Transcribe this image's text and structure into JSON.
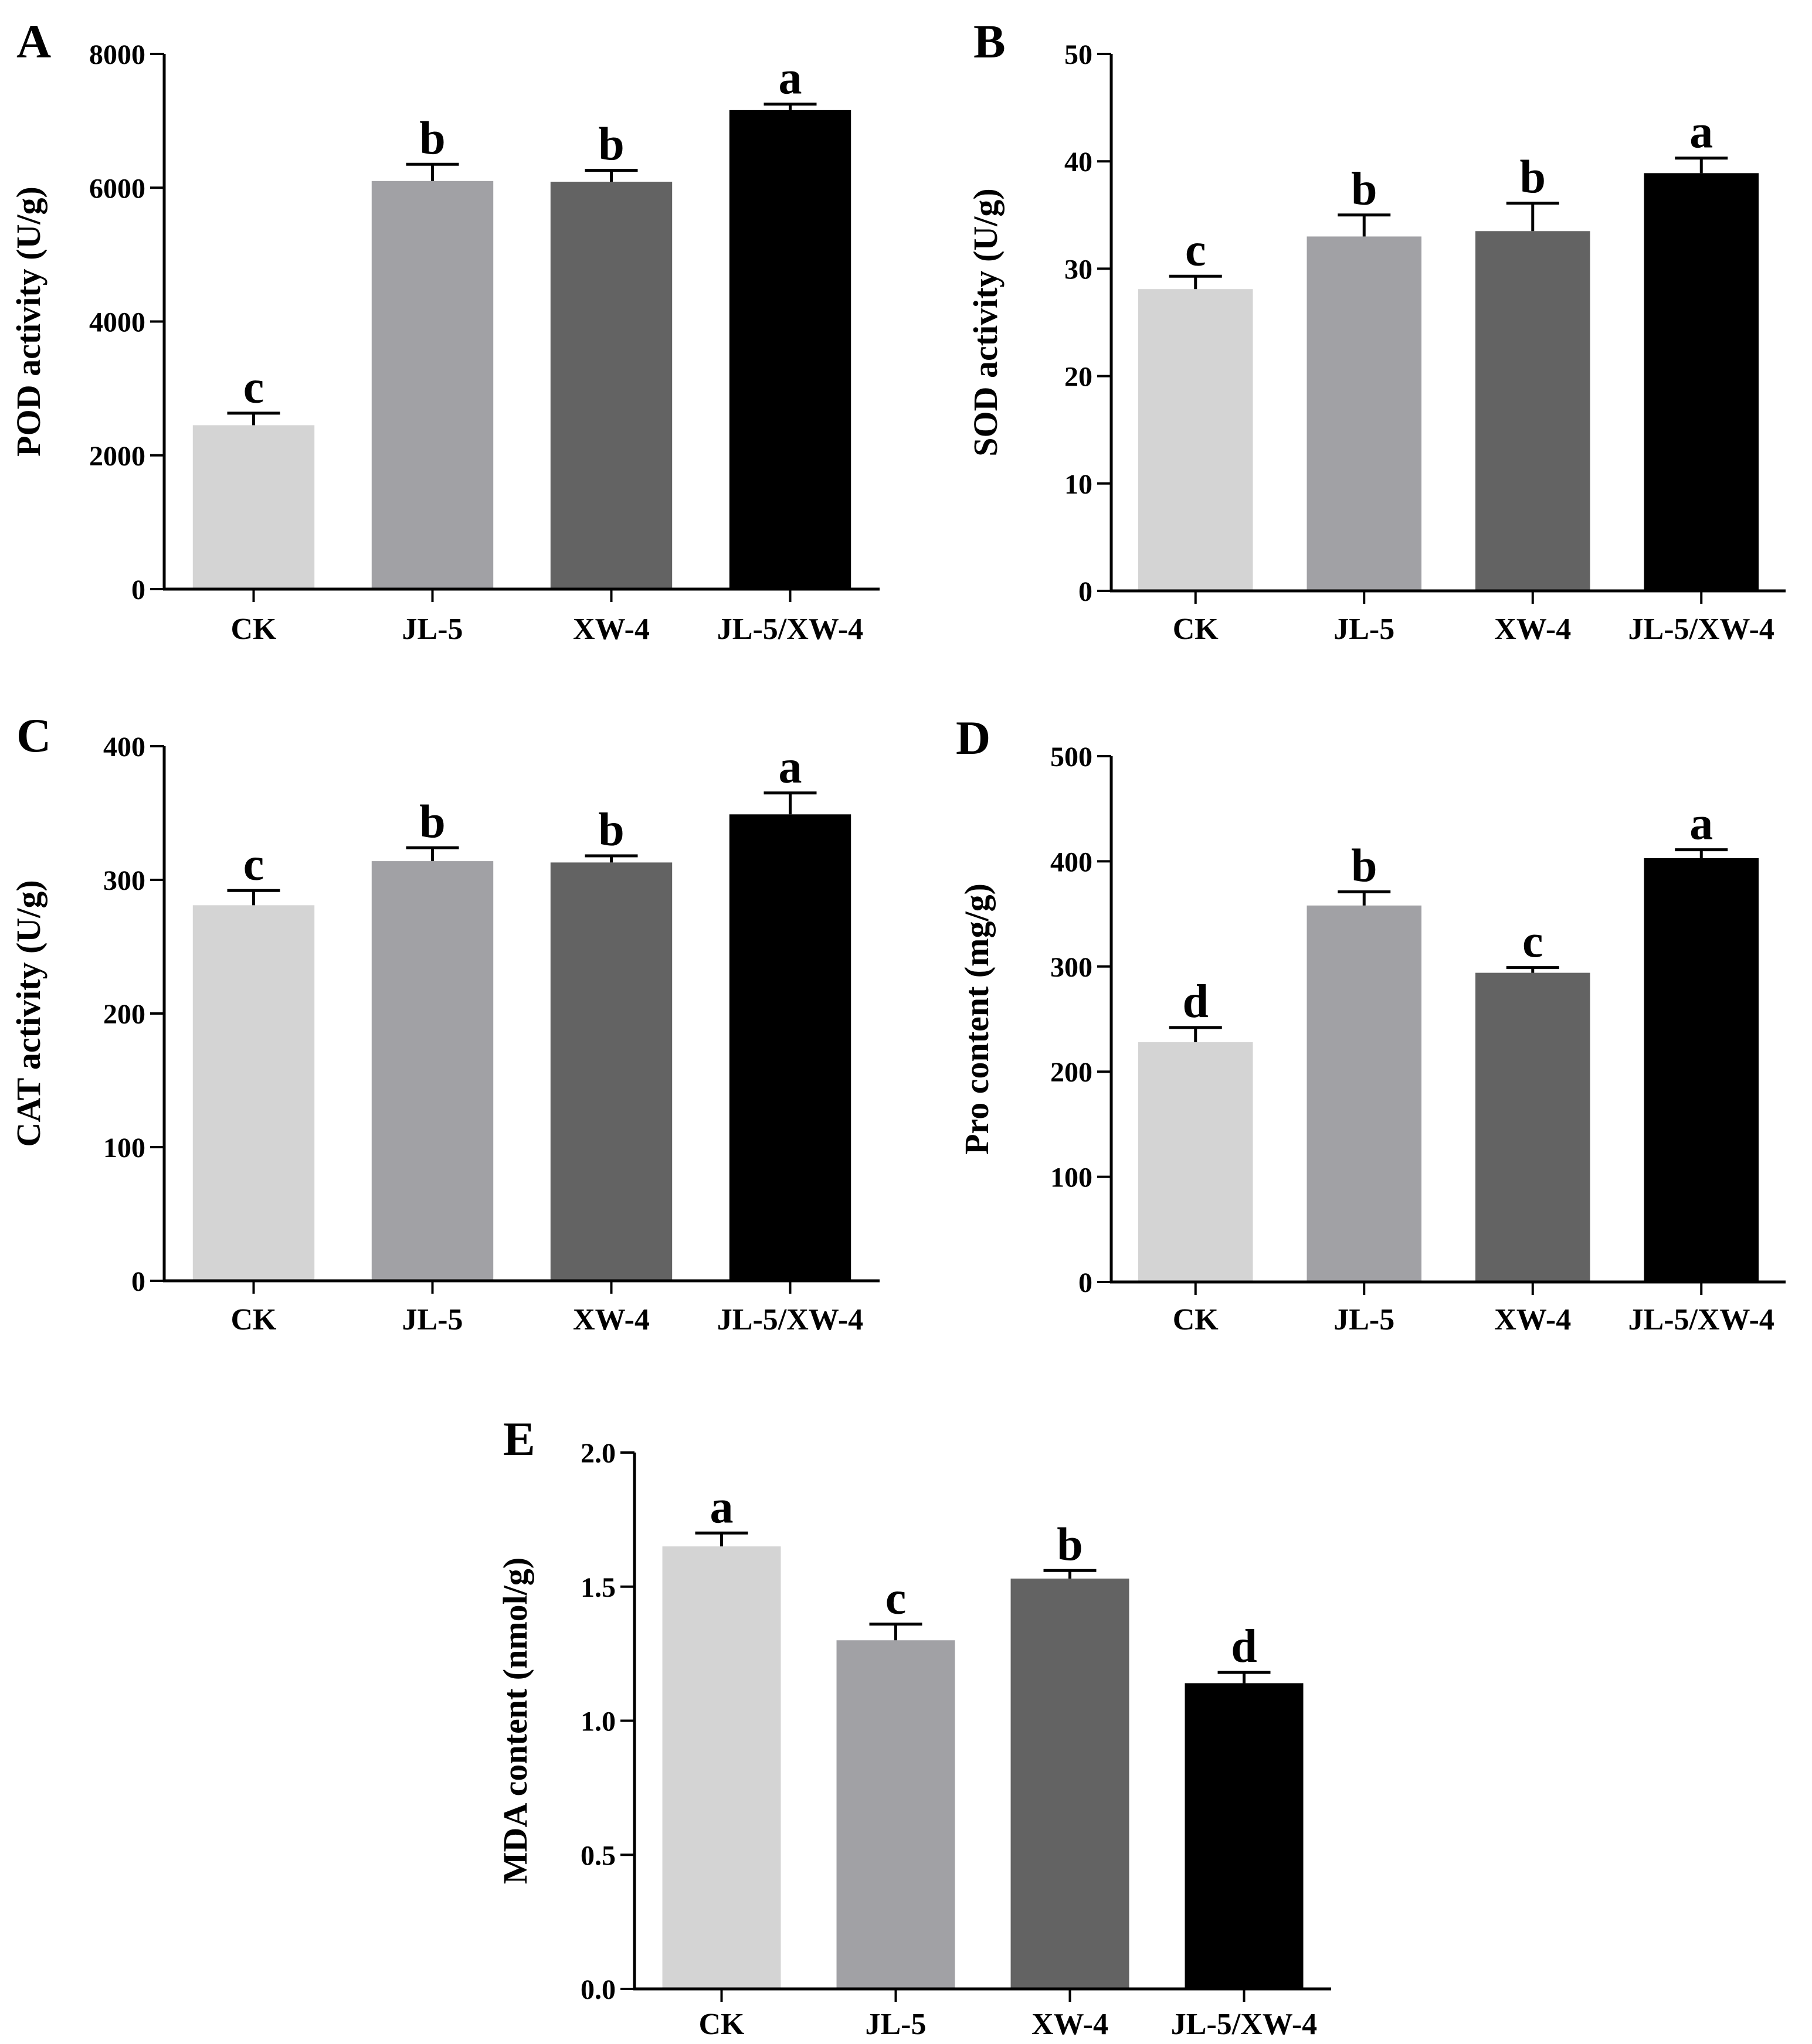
{
  "figure": {
    "category_colors": [
      "#d4d4d4",
      "#a1a1a5",
      "#636363",
      "#000000"
    ]
  },
  "chart_data": [
    {
      "panel": "A",
      "type": "bar",
      "categories": [
        "CK",
        "JL-5",
        "XW-4",
        "JL-5/XW-4"
      ],
      "values": [
        2450,
        6100,
        6090,
        7160
      ],
      "errors": [
        180,
        250,
        170,
        90
      ],
      "significance": [
        "c",
        "b",
        "b",
        "a"
      ],
      "ylabel": "POD activity (U/g)",
      "xlabel": "",
      "ylim": [
        0,
        8000
      ],
      "yticks": [
        0,
        2000,
        4000,
        6000,
        8000
      ],
      "ytick_labels": [
        "0",
        "2000",
        "4000",
        "6000",
        "8000"
      ]
    },
    {
      "panel": "B",
      "type": "bar",
      "categories": [
        "CK",
        "JL-5",
        "XW-4",
        "JL-5/XW-4"
      ],
      "values": [
        28.1,
        33.0,
        33.5,
        38.9
      ],
      "errors": [
        1.2,
        2.0,
        2.6,
        1.4
      ],
      "significance": [
        "c",
        "b",
        "b",
        "a"
      ],
      "ylabel": "SOD activity (U/g)",
      "xlabel": "",
      "ylim": [
        0,
        50
      ],
      "yticks": [
        0,
        10,
        20,
        30,
        40,
        50
      ],
      "ytick_labels": [
        "0",
        "10",
        "20",
        "30",
        "40",
        "50"
      ]
    },
    {
      "panel": "C",
      "type": "bar",
      "categories": [
        "CK",
        "JL-5",
        "XW-4",
        "JL-5/XW-4"
      ],
      "values": [
        281,
        314,
        313,
        349
      ],
      "errors": [
        11,
        10,
        5,
        16
      ],
      "significance": [
        "c",
        "b",
        "b",
        "a"
      ],
      "ylabel": "CAT activity (U/g)",
      "xlabel": "",
      "ylim": [
        0,
        400
      ],
      "yticks": [
        0,
        100,
        200,
        300,
        400
      ],
      "ytick_labels": [
        "0",
        "100",
        "200",
        "300",
        "400"
      ]
    },
    {
      "panel": "D",
      "type": "bar",
      "categories": [
        "CK",
        "JL-5",
        "XW-4",
        "JL-5/XW-4"
      ],
      "values": [
        228,
        358,
        294,
        403
      ],
      "errors": [
        14,
        13,
        5,
        8
      ],
      "significance": [
        "d",
        "b",
        "c",
        "a"
      ],
      "ylabel": "Pro content (mg/g)",
      "xlabel": "",
      "ylim": [
        0,
        500
      ],
      "yticks": [
        0,
        100,
        200,
        300,
        400,
        500
      ],
      "ytick_labels": [
        "0",
        "100",
        "200",
        "300",
        "400",
        "500"
      ]
    },
    {
      "panel": "E",
      "type": "bar",
      "categories": [
        "CK",
        "JL-5",
        "XW-4",
        "JL-5/XW-4"
      ],
      "values": [
        1.65,
        1.3,
        1.53,
        1.14
      ],
      "errors": [
        0.05,
        0.06,
        0.03,
        0.04
      ],
      "significance": [
        "a",
        "c",
        "b",
        "d"
      ],
      "ylabel": "MDA content (nmol/g)",
      "xlabel": "",
      "ylim": [
        0,
        2.0
      ],
      "yticks": [
        0,
        0.5,
        1.0,
        1.5,
        2.0
      ],
      "ytick_labels": [
        "0.0",
        "0.5",
        "1.0",
        "1.5",
        "2.0"
      ]
    }
  ]
}
